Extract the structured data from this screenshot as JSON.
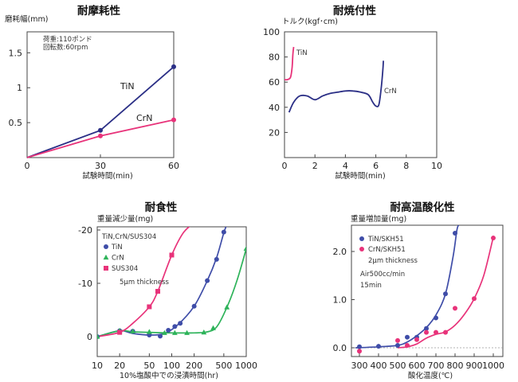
{
  "chart_data": [
    {
      "id": "wear",
      "type": "line",
      "title": "耐摩耗性",
      "ylabel": "磨耗幅(mm)",
      "xlabel": "試験時間(min)",
      "xlim": [
        0,
        60
      ],
      "ylim": [
        0,
        1.8
      ],
      "xticks": [
        0,
        30,
        60
      ],
      "xtick_labels": [
        "0",
        "30",
        "60"
      ],
      "yticks": [
        0.5,
        1,
        1.5
      ],
      "ytick_labels": [
        "0.5",
        "1",
        "1.5"
      ],
      "annotations": [
        "荷重:110ポンド",
        "回転数:60rpm"
      ],
      "series": [
        {
          "name": "TiN",
          "color": "#2b2f86",
          "x": [
            0,
            30,
            60
          ],
          "y": [
            0,
            0.39,
            1.3
          ]
        },
        {
          "name": "CrN",
          "color": "#e8337a",
          "x": [
            0,
            30,
            60
          ],
          "y": [
            0,
            0.31,
            0.54
          ]
        }
      ]
    },
    {
      "id": "seizure",
      "type": "line",
      "title": "耐焼付性",
      "ylabel": "トルク(kgf･cm)",
      "xlabel": "試験時間(min)",
      "xlim": [
        0,
        10
      ],
      "ylim": [
        0,
        100
      ],
      "xticks": [
        0,
        2,
        4,
        6,
        8,
        10
      ],
      "xtick_labels": [
        "0",
        "2",
        "4",
        "6",
        "8",
        "10"
      ],
      "yticks": [
        20,
        40,
        60,
        80,
        100
      ],
      "ytick_labels": [
        "20",
        "40",
        "60",
        "80",
        "100"
      ],
      "series": [
        {
          "name": "TiN",
          "color": "#e8337a",
          "x": [
            0,
            0.2,
            0.4,
            0.5,
            0.55,
            0.6
          ],
          "y": [
            62,
            62,
            64,
            72,
            82,
            88
          ]
        },
        {
          "name": "CrN",
          "color": "#2b2f86",
          "x": [
            0.3,
            0.6,
            1.0,
            1.5,
            2.0,
            2.5,
            3.0,
            3.5,
            4.0,
            4.5,
            5.0,
            5.5,
            5.8,
            6.0,
            6.2,
            6.35,
            6.45,
            6.5
          ],
          "y": [
            36,
            44,
            49,
            49,
            46,
            49,
            51,
            52,
            53,
            53,
            52,
            50,
            44,
            41,
            42,
            55,
            68,
            77
          ]
        }
      ]
    },
    {
      "id": "corrosion",
      "type": "line",
      "title": "耐食性",
      "ylabel": "重量減少量(mg)",
      "xlabel": "10%塩酸中での浸漬時間(hr)",
      "xscale": "log",
      "xlim": [
        10,
        1000
      ],
      "ylim": [
        -20,
        2
      ],
      "y_inverted": true,
      "xticks": [
        10,
        20,
        50,
        100,
        200,
        500,
        1000
      ],
      "xtick_labels": [
        "10",
        "20",
        "50",
        "100",
        "200",
        "500",
        "1000"
      ],
      "yticks": [
        0,
        -10,
        -20
      ],
      "ytick_labels": [
        "0",
        "-10",
        "-20"
      ],
      "legend": {
        "title": "TiN,CrN/SUS304",
        "note": "5μm thickness"
      },
      "series": [
        {
          "name": "TiN",
          "color": "#3f4da8",
          "marker": "circle",
          "x": [
            10,
            20,
            30,
            50,
            70,
            90,
            110,
            130,
            200,
            300,
            400,
            500
          ],
          "y": [
            0,
            -1.1,
            -1.0,
            -0.3,
            -0.1,
            -1.2,
            -1.9,
            -2.5,
            -5.7,
            -10.5,
            -14.5,
            -19.6
          ],
          "curve_x": [
            10,
            20,
            30,
            50,
            80,
            120,
            200,
            300,
            400,
            500,
            550
          ],
          "curve_y": [
            0,
            -1.1,
            -0.6,
            -0.3,
            -0.6,
            -2.2,
            -5.7,
            -10.5,
            -14.8,
            -19.5,
            -21
          ]
        },
        {
          "name": "CrN",
          "color": "#2eb35a",
          "marker": "triangle",
          "x": [
            10,
            20,
            30,
            50,
            80,
            110,
            160,
            270,
            360,
            550,
            1000
          ],
          "y": [
            0,
            -1.1,
            -1.0,
            -0.9,
            -0.7,
            -0.7,
            -0.7,
            -0.8,
            -1.6,
            -5.5,
            -16.5
          ],
          "curve_x": [
            10,
            20,
            30,
            50,
            100,
            200,
            300,
            400,
            550,
            750,
            1000
          ],
          "curve_y": [
            0,
            -1.1,
            -0.9,
            -0.8,
            -0.7,
            -0.7,
            -0.9,
            -1.8,
            -5.5,
            -10.5,
            -16.5
          ]
        },
        {
          "name": "SUS304",
          "color": "#e8337a",
          "marker": "square",
          "x": [
            20,
            50,
            65,
            100
          ],
          "y": [
            -0.8,
            -5.6,
            -8.5,
            -15.3
          ],
          "curve_x": [
            10,
            20,
            30,
            50,
            65,
            100,
            140,
            185
          ],
          "curve_y": [
            0,
            -0.8,
            -2.5,
            -5.6,
            -8.5,
            -15.3,
            -19.3,
            -21
          ]
        }
      ]
    },
    {
      "id": "oxidation",
      "type": "line",
      "title": "耐高温酸化性",
      "ylabel": "重量増加量(mg)",
      "xlabel": "酸化温度(℃)",
      "xlim": [
        270,
        1030
      ],
      "ylim": [
        -0.15,
        2.5
      ],
      "xticks": [
        300,
        400,
        500,
        600,
        700,
        800,
        900,
        1000
      ],
      "xtick_labels": [
        "300",
        "400",
        "500",
        "600",
        "700",
        "800",
        "900",
        "1000"
      ],
      "yticks": [
        0,
        1,
        2
      ],
      "ytick_labels": [
        "0.0",
        "1.0",
        "2.0"
      ],
      "legend": {
        "note1": "2μm thickness",
        "note2": "Air500cc/min",
        "note3": "15min"
      },
      "series": [
        {
          "name": "TiN/SKH51",
          "color": "#3f4da8",
          "marker": "circle",
          "x": [
            300,
            400,
            500,
            550,
            600,
            650,
            700,
            750,
            800
          ],
          "y": [
            0.02,
            0.03,
            0.05,
            0.22,
            0.22,
            0.4,
            0.62,
            1.12,
            2.38
          ],
          "curve_x": [
            280,
            400,
            500,
            550,
            600,
            650,
            700,
            750,
            790,
            810,
            820
          ],
          "curve_y": [
            0.0,
            0.02,
            0.05,
            0.12,
            0.25,
            0.42,
            0.68,
            1.12,
            1.9,
            2.45,
            2.55
          ]
        },
        {
          "name": "CrN/SKH51",
          "color": "#e8337a",
          "marker": "circle",
          "x": [
            300,
            500,
            550,
            600,
            650,
            700,
            750,
            800,
            900,
            1000
          ],
          "y": [
            -0.07,
            0.15,
            0.05,
            0.17,
            0.32,
            0.32,
            0.32,
            0.82,
            1.02,
            2.28
          ],
          "curve_x": [
            500,
            550,
            600,
            650,
            700,
            750,
            800,
            850,
            900,
            950,
            1000
          ],
          "curve_y": [
            0.0,
            0.02,
            0.08,
            0.2,
            0.28,
            0.33,
            0.47,
            0.7,
            1.02,
            1.5,
            2.3
          ]
        }
      ]
    }
  ]
}
